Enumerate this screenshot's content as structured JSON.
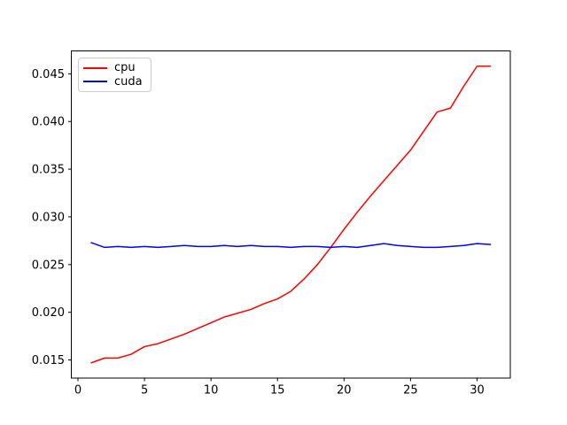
{
  "chart_data": {
    "type": "line",
    "title": "",
    "xlabel": "",
    "ylabel": "",
    "x": [
      1,
      2,
      3,
      4,
      5,
      6,
      7,
      8,
      9,
      10,
      11,
      12,
      13,
      14,
      15,
      16,
      17,
      18,
      19,
      20,
      21,
      22,
      23,
      24,
      25,
      26,
      27,
      28,
      29,
      30,
      31
    ],
    "series": [
      {
        "name": "cpu",
        "color": "#ff0000",
        "values": [
          0.0147,
          0.0152,
          0.0152,
          0.0156,
          0.0164,
          0.0167,
          0.0172,
          0.0177,
          0.0183,
          0.0189,
          0.0195,
          0.0199,
          0.0203,
          0.0209,
          0.0214,
          0.0222,
          0.0235,
          0.025,
          0.0268,
          0.0287,
          0.0305,
          0.0322,
          0.0338,
          0.0354,
          0.037,
          0.039,
          0.041,
          0.0414,
          0.0437,
          0.0458,
          0.0458
        ]
      },
      {
        "name": "cuda",
        "color": "#0000ff",
        "values": [
          0.0273,
          0.0268,
          0.0269,
          0.0268,
          0.0269,
          0.0268,
          0.0269,
          0.027,
          0.0269,
          0.0269,
          0.027,
          0.0269,
          0.027,
          0.0269,
          0.0269,
          0.0268,
          0.0269,
          0.0269,
          0.0268,
          0.0269,
          0.0268,
          0.027,
          0.0272,
          0.027,
          0.0269,
          0.0268,
          0.0268,
          0.0269,
          0.027,
          0.0272,
          0.0271
        ]
      }
    ],
    "xlim": [
      -0.5,
      32.5
    ],
    "ylim": [
      0.0131,
      0.0474
    ],
    "x_ticks": [
      0,
      5,
      10,
      15,
      20,
      25,
      30
    ],
    "y_ticks": [
      0.015,
      0.02,
      0.025,
      0.03,
      0.035,
      0.04,
      0.045
    ],
    "y_tick_decimals": 3,
    "grid": false,
    "legend_position": "upper left",
    "line_width": 1.5
  },
  "legend": {
    "items": [
      {
        "label": "cpu",
        "color": "#ff0000"
      },
      {
        "label": "cuda",
        "color": "#0000ff"
      }
    ]
  },
  "colors": {
    "background": "#ffffff",
    "frame": "#000000",
    "tick_text": "#000000",
    "legend_border": "#cccccc"
  }
}
